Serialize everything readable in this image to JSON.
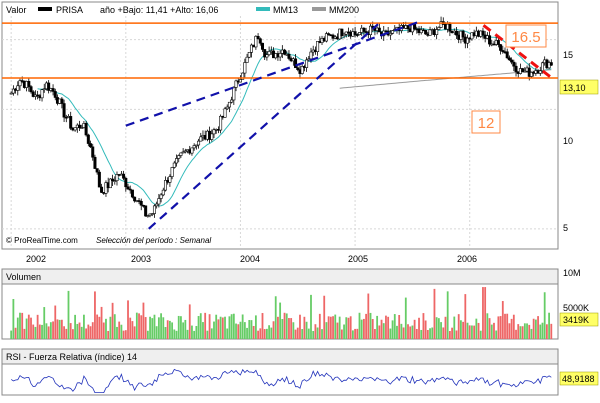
{
  "header": {
    "valor_label": "Valor",
    "ticker": "PRISA",
    "range_text": "año +Bajo: 11,41 +Alto: 16,06",
    "ma_short": "MM13",
    "ma_long": "MM200"
  },
  "watermark": "© ProRealTime.com",
  "period_label": "Selección del período : Semanal",
  "volume_panel_title": "Volumen",
  "rsi_panel_title": "RSI - Fuerza Relativa (índice) 14",
  "colors": {
    "up_candle": "#ffffff",
    "down_candle": "#000000",
    "ma_short": "#33bbbb",
    "ma_long": "#999999",
    "hline": "#ff6600",
    "trend_channel": "#1111aa",
    "down_trend": "#ee1111",
    "vol_up": "#66cc66",
    "vol_down": "#ee6666",
    "rsi_line": "#2233bb",
    "grid": "#d8d8d8"
  },
  "chart_data": [
    {
      "type": "candlestick",
      "title": "PRISA",
      "x_ticks": [
        "2002",
        "2003",
        "2004",
        "2005",
        "2006"
      ],
      "y_ticks": [
        "5",
        "10",
        "15"
      ],
      "ylim": [
        4.5,
        17.2
      ],
      "x_range": [
        2001.92,
        2006.77
      ],
      "scale": "log",
      "grid": true,
      "last_value": "13,10",
      "price_points": [
        [
          2002.0,
          11.0
        ],
        [
          2002.08,
          11.9
        ],
        [
          2002.15,
          11.4
        ],
        [
          2002.22,
          10.6
        ],
        [
          2002.3,
          11.6
        ],
        [
          2002.38,
          11.0
        ],
        [
          2002.46,
          9.8
        ],
        [
          2002.54,
          8.9
        ],
        [
          2002.62,
          9.2
        ],
        [
          2002.7,
          7.9
        ],
        [
          2002.78,
          6.2
        ],
        [
          2002.86,
          6.5
        ],
        [
          2002.94,
          6.9
        ],
        [
          2003.02,
          6.4
        ],
        [
          2003.1,
          5.9
        ],
        [
          2003.18,
          5.4
        ],
        [
          2003.24,
          5.5
        ],
        [
          2003.32,
          6.3
        ],
        [
          2003.4,
          7.0
        ],
        [
          2003.48,
          7.6
        ],
        [
          2003.56,
          8.0
        ],
        [
          2003.64,
          8.4
        ],
        [
          2003.72,
          8.6
        ],
        [
          2003.8,
          9.0
        ],
        [
          2003.88,
          10.0
        ],
        [
          2003.96,
          11.5
        ],
        [
          2004.04,
          13.0
        ],
        [
          2004.1,
          14.3
        ],
        [
          2004.16,
          15.5
        ],
        [
          2004.22,
          13.7
        ],
        [
          2004.3,
          13.8
        ],
        [
          2004.38,
          14.2
        ],
        [
          2004.46,
          13.2
        ],
        [
          2004.53,
          12.6
        ],
        [
          2004.6,
          13.8
        ],
        [
          2004.68,
          14.7
        ],
        [
          2004.76,
          15.2
        ],
        [
          2004.84,
          15.4
        ],
        [
          2004.92,
          16.0
        ],
        [
          2005.0,
          15.5
        ],
        [
          2005.08,
          15.7
        ],
        [
          2005.16,
          15.9
        ],
        [
          2005.24,
          15.3
        ],
        [
          2005.32,
          15.6
        ],
        [
          2005.4,
          15.8
        ],
        [
          2005.48,
          16.1
        ],
        [
          2005.56,
          15.7
        ],
        [
          2005.64,
          15.4
        ],
        [
          2005.72,
          16.1
        ],
        [
          2005.8,
          16.3
        ],
        [
          2005.88,
          15.6
        ],
        [
          2005.96,
          15.1
        ],
        [
          2006.04,
          15.6
        ],
        [
          2006.12,
          15.3
        ],
        [
          2006.2,
          14.7
        ],
        [
          2006.28,
          14.4
        ],
        [
          2006.36,
          13.2
        ],
        [
          2006.44,
          12.5
        ],
        [
          2006.52,
          12.4
        ],
        [
          2006.6,
          12.7
        ],
        [
          2006.66,
          13.1
        ],
        [
          2006.72,
          13.1
        ]
      ],
      "hlines": [
        16.5,
        12.0
      ],
      "hline_labels": [
        "16.5",
        "12"
      ],
      "trend_channel_upper": [
        [
          2003.0,
          9.1
        ],
        [
          2005.55,
          16.6
        ]
      ],
      "trend_channel_lower": [
        [
          2003.2,
          5.0
        ],
        [
          2005.2,
          16.4
        ]
      ],
      "down_trendline": [
        [
          2006.12,
          16.3
        ],
        [
          2006.7,
          12.1
        ]
      ]
    },
    {
      "type": "bar",
      "title": "Volumen",
      "y_ticks": [
        "10M",
        "5000K"
      ],
      "last_value": "3419K",
      "ylim": [
        0,
        10000
      ],
      "note": "weekly volume bars, values in thousands of shares"
    },
    {
      "type": "line",
      "title": "RSI - Fuerza Relativa (índice) 14",
      "last_value": "48,9188",
      "ylim": [
        0,
        100
      ]
    }
  ]
}
